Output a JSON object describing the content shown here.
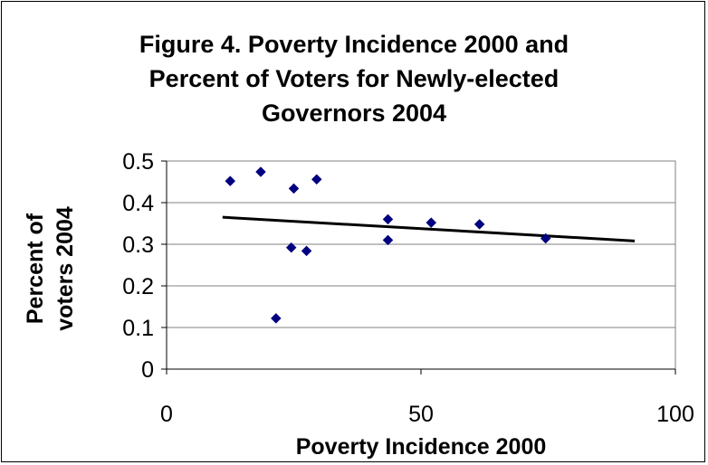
{
  "chart_data": {
    "type": "scatter",
    "title_lines": [
      "Figure 4. Poverty Incidence 2000 and",
      "Percent of Voters for Newly-elected",
      "Governors 2004"
    ],
    "xlabel": "Poverty Incidence 2000",
    "ylabel_lines": [
      "Percent of",
      "voters 2004"
    ],
    "xlim": [
      0,
      100
    ],
    "ylim": [
      0,
      0.5
    ],
    "x_ticks": [
      "0",
      "50",
      "100"
    ],
    "y_ticks": [
      "0",
      "0.1",
      "0.2",
      "0.3",
      "0.4",
      "0.5"
    ],
    "grid": true,
    "legend": "none",
    "series": [
      {
        "marker": "diamond",
        "color": "#000080",
        "points": [
          {
            "x": 12.5,
            "y": 0.452
          },
          {
            "x": 18.5,
            "y": 0.474
          },
          {
            "x": 21.5,
            "y": 0.122
          },
          {
            "x": 24.5,
            "y": 0.292
          },
          {
            "x": 25.0,
            "y": 0.434
          },
          {
            "x": 27.5,
            "y": 0.284
          },
          {
            "x": 29.5,
            "y": 0.456
          },
          {
            "x": 43.5,
            "y": 0.31
          },
          {
            "x": 43.5,
            "y": 0.36
          },
          {
            "x": 52.0,
            "y": 0.352
          },
          {
            "x": 61.5,
            "y": 0.348
          },
          {
            "x": 74.5,
            "y": 0.314
          }
        ]
      }
    ],
    "trendline": {
      "type": "linear",
      "color": "#000000",
      "points": [
        {
          "x": 11,
          "y": 0.365
        },
        {
          "x": 92,
          "y": 0.308
        }
      ]
    }
  }
}
